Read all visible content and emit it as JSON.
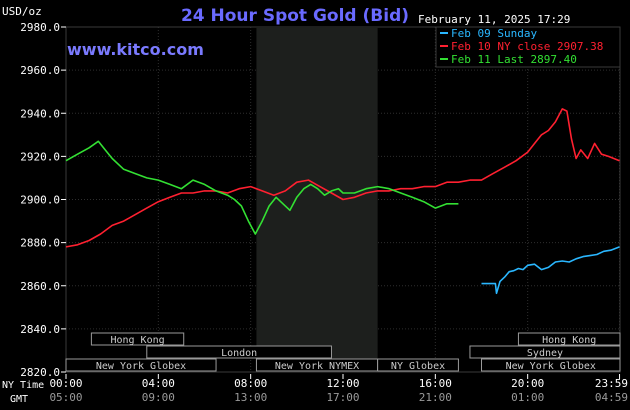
{
  "header": {
    "unit": "USD/oz",
    "title": "24 Hour Spot Gold (Bid)",
    "site": "www.kitco.com",
    "datetime": "February 11, 2025 17:29"
  },
  "legend": [
    {
      "label": "Feb 09 Sunday",
      "color": "#2ab7ff"
    },
    {
      "label": "Feb 10 NY close 2907.38",
      "color": "#ff2030"
    },
    {
      "label": "Feb 11 Last 2897.40",
      "color": "#33e033"
    }
  ],
  "sessions": [
    {
      "label": "Hong Kong",
      "row": 0,
      "start": 1.1,
      "end": 5.1
    },
    {
      "label": "Hong Kong",
      "row": 0,
      "start": 19.6,
      "end": 24.0
    },
    {
      "label": "London",
      "row": 1,
      "start": 3.5,
      "end": 11.5
    },
    {
      "label": "Sydney",
      "row": 1,
      "start": 17.5,
      "end": 24.0
    },
    {
      "label": "New York Globex",
      "row": 2,
      "start": 0,
      "end": 6.5
    },
    {
      "label": "New York NYMEX",
      "row": 2,
      "start": 8.25,
      "end": 13.5
    },
    {
      "label": "New York Globex",
      "row": 2,
      "start": 13.5,
      "end": 17.0
    },
    {
      "label": "NY Globex",
      "row": 2,
      "start": 13.5,
      "end": 17.0
    },
    {
      "label": "New York Globex",
      "row": 2,
      "start": 18.0,
      "end": 24.0
    }
  ],
  "time_rows": {
    "ny_label": "NY Time",
    "gmt_label": "GMT",
    "ny_ticks": [
      "00:00",
      "04:00",
      "08:00",
      "12:00",
      "16:00",
      "20:00",
      "23:59"
    ],
    "gmt_ticks": [
      "05:00",
      "09:00",
      "13:00",
      "17:00",
      "21:00",
      "01:00",
      "04:59"
    ]
  },
  "chart_data": {
    "type": "line",
    "ylim": [
      2820,
      2980
    ],
    "xlim": [
      0,
      24
    ],
    "y_ticks": [
      "2980.0",
      "2960.0",
      "2940.0",
      "2920.0",
      "2900.0",
      "2880.0",
      "2860.0",
      "2840.0",
      "2820.0"
    ],
    "x_ticks_hours": [
      0,
      4,
      8,
      12,
      16,
      20,
      23.98
    ],
    "highlight_hours": [
      8.25,
      13.5
    ],
    "series": [
      {
        "name": "Feb 09 Sunday",
        "color": "#2ab7ff",
        "x": [
          18.0,
          18.6,
          18.65,
          18.8,
          19.0,
          19.2,
          19.4,
          19.6,
          19.8,
          20.0,
          20.3,
          20.6,
          20.9,
          21.2,
          21.5,
          21.8,
          22.1,
          22.4,
          22.7,
          23.0,
          23.3,
          23.6,
          23.98
        ],
        "y": [
          2861.0,
          2861.0,
          2856.5,
          2862.0,
          2864.0,
          2866.5,
          2867.0,
          2868.0,
          2867.5,
          2869.5,
          2870.0,
          2867.5,
          2868.5,
          2871.0,
          2871.5,
          2871.0,
          2872.5,
          2873.5,
          2874.0,
          2874.5,
          2876.0,
          2876.5,
          2878.0
        ]
      },
      {
        "name": "Feb 10 NY close 2907.38",
        "color": "#ff2030",
        "x": [
          0,
          0.5,
          1.0,
          1.5,
          2.0,
          2.5,
          3.0,
          3.5,
          4.0,
          4.5,
          5.0,
          5.5,
          6.0,
          6.5,
          7.0,
          7.5,
          8.0,
          8.5,
          9.0,
          9.5,
          10.0,
          10.5,
          11.0,
          11.5,
          12.0,
          12.5,
          13.0,
          13.5,
          14.0,
          14.5,
          15.0,
          15.5,
          16.0,
          16.5,
          17.0,
          17.5,
          18.0,
          18.5,
          19.0,
          19.5,
          20.0,
          20.3,
          20.6,
          20.9,
          21.2,
          21.5,
          21.7,
          21.9,
          22.1,
          22.3,
          22.6,
          22.9,
          23.2,
          23.5,
          23.98
        ],
        "y": [
          2878.0,
          2879.0,
          2881.0,
          2884.0,
          2888.0,
          2890.0,
          2893.0,
          2896.0,
          2899.0,
          2901.0,
          2903.0,
          2903.0,
          2904.0,
          2904.0,
          2903.0,
          2905.0,
          2906.0,
          2904.0,
          2902.0,
          2904.0,
          2908.0,
          2909.0,
          2906.0,
          2903.0,
          2900.0,
          2901.0,
          2903.0,
          2904.0,
          2904.0,
          2905.0,
          2905.0,
          2906.0,
          2906.0,
          2908.0,
          2908.0,
          2909.0,
          2909.0,
          2912.0,
          2915.0,
          2918.0,
          2922.0,
          2926.0,
          2930.0,
          2932.0,
          2936.0,
          2942.0,
          2941.0,
          2928.0,
          2919.0,
          2923.0,
          2919.0,
          2926.0,
          2921.0,
          2920.0,
          2918.0
        ]
      },
      {
        "name": "Feb 11 Last 2897.40",
        "color": "#33e033",
        "x": [
          0,
          0.5,
          1.0,
          1.4,
          1.7,
          2.0,
          2.5,
          3.0,
          3.5,
          4.0,
          4.5,
          5.0,
          5.5,
          6.0,
          6.5,
          7.0,
          7.3,
          7.6,
          7.9,
          8.2,
          8.5,
          8.8,
          9.1,
          9.4,
          9.7,
          10.0,
          10.3,
          10.6,
          10.9,
          11.2,
          11.5,
          11.8,
          12.0,
          12.5,
          13.0,
          13.5,
          14.0,
          14.5,
          15.0,
          15.5,
          16.0,
          16.5,
          17.0
        ],
        "y": [
          2918.0,
          2921.0,
          2924.0,
          2927.0,
          2923.0,
          2919.0,
          2914.0,
          2912.0,
          2910.0,
          2909.0,
          2907.0,
          2905.0,
          2909.0,
          2907.0,
          2904.0,
          2902.0,
          2900.0,
          2897.0,
          2890.0,
          2884.0,
          2890.0,
          2897.0,
          2901.0,
          2898.0,
          2895.0,
          2901.0,
          2905.0,
          2907.0,
          2905.0,
          2902.0,
          2904.0,
          2905.0,
          2903.0,
          2903.0,
          2905.0,
          2906.0,
          2905.0,
          2903.0,
          2901.0,
          2899.0,
          2896.0,
          2898.0,
          2898.0
        ]
      }
    ]
  }
}
